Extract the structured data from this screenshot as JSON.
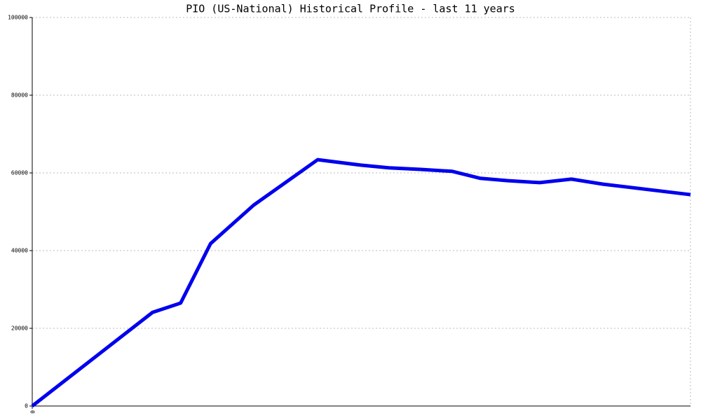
{
  "chart_data": {
    "type": "line",
    "title": "PIO (US-National) Historical Profile - last 11 years",
    "x": [
      0,
      2.01,
      2.48,
      2.98,
      3.7,
      4.77,
      5.49,
      5.96,
      6.49,
      7.02,
      7.49,
      7.95,
      8.48,
      9.01,
      9.54,
      11.0
    ],
    "series": [
      {
        "name": "PIO",
        "color": "#0000ee",
        "values": [
          0,
          24100,
          26500,
          41800,
          51700,
          63400,
          62000,
          61300,
          60900,
          60400,
          58600,
          58000,
          57500,
          58400,
          57100,
          54400
        ]
      }
    ],
    "xlim": [
      0,
      11.0
    ],
    "xticks": [
      0
    ],
    "ylim": [
      0,
      100000
    ],
    "yticks": [
      0,
      20000,
      40000,
      60000,
      80000,
      100000
    ],
    "grid": true
  }
}
